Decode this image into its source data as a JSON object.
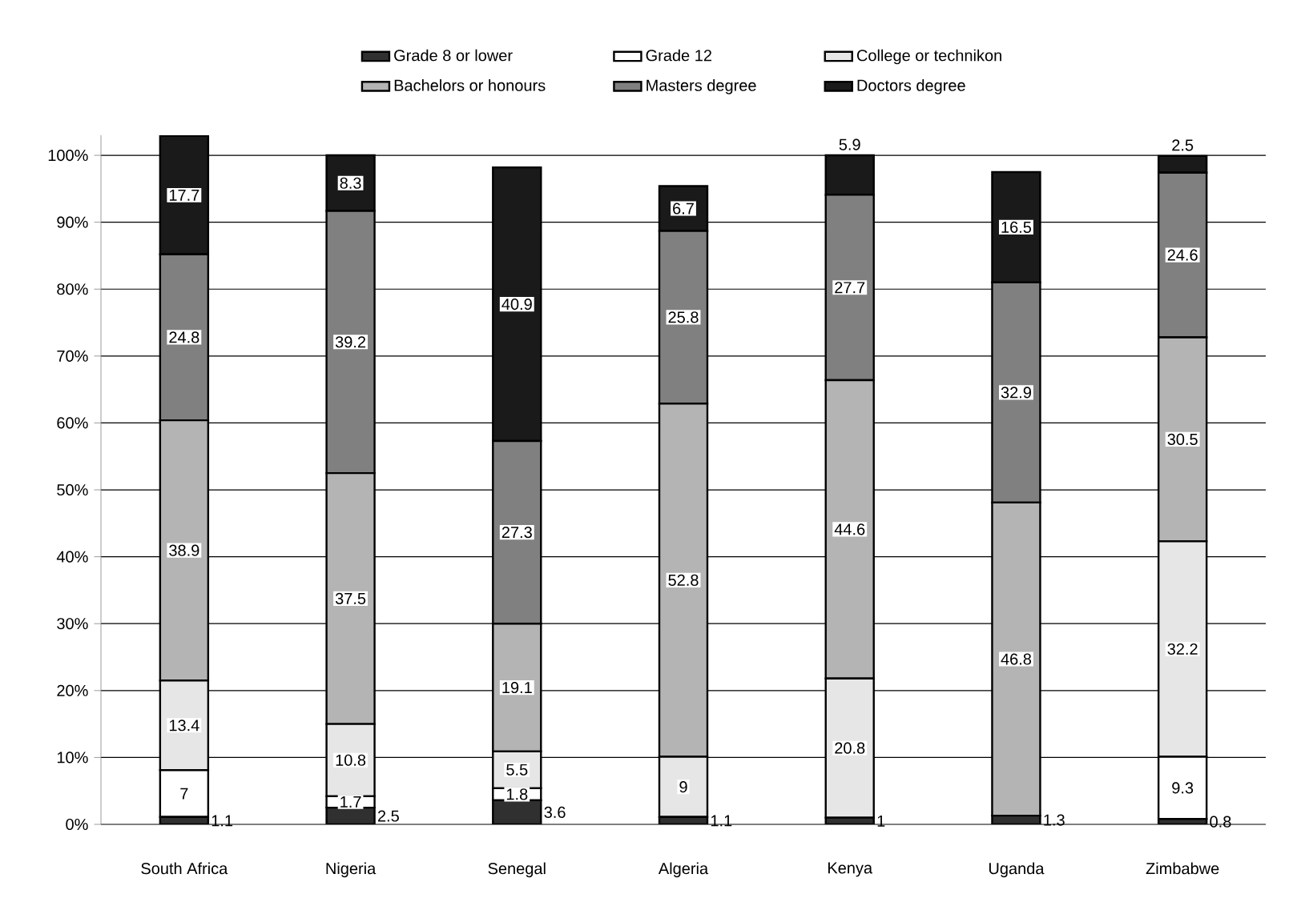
{
  "chart_data": {
    "type": "bar",
    "stacked": true,
    "data_labels": true,
    "grid": "y",
    "legend": "top",
    "categories": [
      "South Africa",
      "Nigeria",
      "Senegal",
      "Algeria",
      "Kenya",
      "Uganda",
      "Zimbabwe"
    ],
    "ylim": [
      0,
      103
    ],
    "yticks": [
      {
        "value": 0,
        "label": "0%"
      },
      {
        "value": 10,
        "label": "10%"
      },
      {
        "value": 20,
        "label": "20%"
      },
      {
        "value": 30,
        "label": "30%"
      },
      {
        "value": 40,
        "label": "40%"
      },
      {
        "value": 50,
        "label": "50%"
      },
      {
        "value": 60,
        "label": "60%"
      },
      {
        "value": 70,
        "label": "70%"
      },
      {
        "value": 80,
        "label": "80%"
      },
      {
        "value": 90,
        "label": "90%"
      },
      {
        "value": 100,
        "label": "100%"
      }
    ],
    "series": [
      {
        "name": "Grade 8 or lower",
        "color": "#303030",
        "values": [
          1.1,
          2.5,
          3.6,
          1.1,
          1,
          1.3,
          0.8
        ]
      },
      {
        "name": "Grade 12",
        "color": "#ffffff",
        "values": [
          7,
          1.7,
          1.8,
          null,
          null,
          null,
          9.3
        ]
      },
      {
        "name": "College or technikon",
        "color": "#e6e6e6",
        "values": [
          13.4,
          10.8,
          5.5,
          9,
          20.8,
          null,
          32.2
        ]
      },
      {
        "name": "Bachelors or honours",
        "color": "#b4b4b4",
        "values": [
          38.9,
          37.5,
          19.1,
          52.8,
          44.6,
          46.8,
          30.5
        ]
      },
      {
        "name": "Masters degree",
        "color": "#808080",
        "values": [
          24.8,
          39.2,
          27.3,
          25.8,
          27.7,
          32.9,
          24.6
        ]
      },
      {
        "name": "Doctors degree",
        "color": "#1a1a1a",
        "values": [
          17.7,
          8.3,
          40.9,
          6.7,
          5.9,
          16.5,
          2.5
        ]
      }
    ]
  }
}
